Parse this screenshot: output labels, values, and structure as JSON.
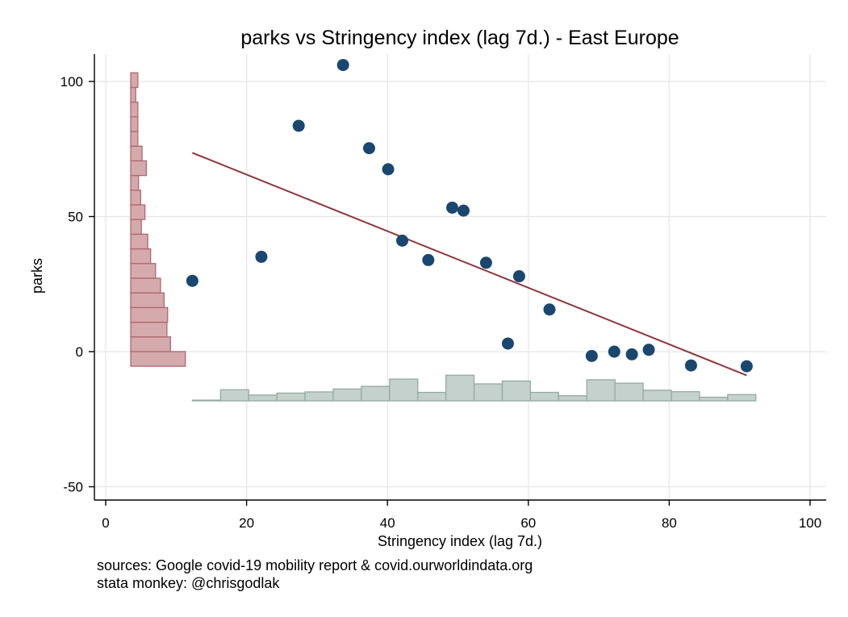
{
  "chart_data": {
    "type": "scatter",
    "title": "parks vs Stringency index (lag 7d.) - East Europe",
    "xlabel": "Stringency index (lag 7d.)",
    "ylabel": "parks",
    "xlim": [
      0,
      100
    ],
    "ylim": [
      -50,
      105
    ],
    "x_ticks": [
      0,
      20,
      40,
      60,
      80,
      100
    ],
    "y_ticks": [
      -50,
      0,
      50,
      100
    ],
    "grid": true,
    "points": [
      {
        "x": 12.3,
        "y": 26.2
      },
      {
        "x": 22.1,
        "y": 35.1
      },
      {
        "x": 27.4,
        "y": 83.6
      },
      {
        "x": 33.7,
        "y": 106.1
      },
      {
        "x": 37.4,
        "y": 75.3
      },
      {
        "x": 40.1,
        "y": 67.5
      },
      {
        "x": 42.1,
        "y": 41.1
      },
      {
        "x": 45.8,
        "y": 33.9
      },
      {
        "x": 49.2,
        "y": 53.3
      },
      {
        "x": 50.8,
        "y": 52.2
      },
      {
        "x": 54.0,
        "y": 32.9
      },
      {
        "x": 57.1,
        "y": 3.0
      },
      {
        "x": 58.7,
        "y": 27.9
      },
      {
        "x": 63.0,
        "y": 15.6
      },
      {
        "x": 69.0,
        "y": -1.6
      },
      {
        "x": 72.2,
        "y": 0.0
      },
      {
        "x": 74.7,
        "y": -1.0
      },
      {
        "x": 77.1,
        "y": 0.7
      },
      {
        "x": 83.1,
        "y": -5.1
      },
      {
        "x": 91.0,
        "y": -5.4
      }
    ],
    "fit_line": {
      "x": [
        12.3,
        91.0
      ],
      "y": [
        73.6,
        -8.8
      ]
    },
    "x_histogram": {
      "bin_start": 12.3,
      "bin_width": 4.0,
      "heights": [
        0.3,
        4.6,
        2.4,
        3.2,
        3.7,
        4.9,
        6.0,
        9.0,
        3.5,
        10.6,
        7.0,
        8.2,
        3.5,
        2.1,
        8.7,
        7.3,
        4.4,
        3.8,
        1.5,
        2.6
      ]
    },
    "y_histogram": {
      "bin_start": -5.4,
      "bin_width": 5.43,
      "lengths": [
        7.7,
        5.6,
        5.1,
        5.2,
        4.7,
        4.2,
        3.5,
        2.8,
        2.4,
        1.5,
        2.0,
        1.4,
        1.1,
        2.2,
        1.6,
        1.0,
        1.0,
        1.0,
        0.7,
        1.0
      ]
    },
    "colors": {
      "marker": "#1a476f",
      "fit_line": "#90353b",
      "x_hist_fill": "#c5d1cc",
      "x_hist_stroke": "#93aba1",
      "y_hist_fill": "#d5aaad",
      "y_hist_stroke": "#b0676d",
      "grid": "#e6e6e6"
    }
  },
  "notes": {
    "line1": "sources: Google covid-19 mobility report & covid.ourworldindata.org",
    "line2": "stata monkey: @chrisgodlak"
  }
}
